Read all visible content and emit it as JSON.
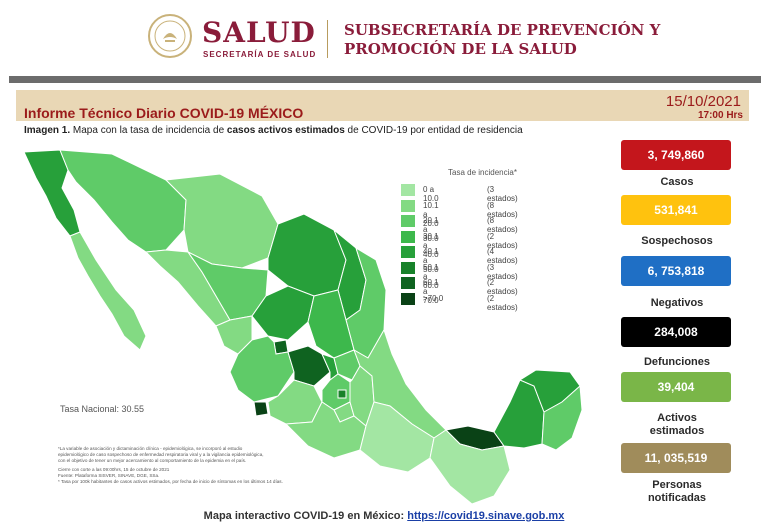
{
  "header": {
    "seal_label": "ESTADOS UNIDOS MEXICANOS",
    "brand": "SALUD",
    "brand_sub": "SECRETARÍA DE SALUD",
    "subsecretaria_line1": "SUBSECRETARÍA DE PREVENCIÓN Y",
    "subsecretaria_line2": "PROMOCIÓN DE LA SALUD"
  },
  "report": {
    "title": "Informe Técnico Diario COVID-19 MÉXICO",
    "date": "15/10/2021",
    "time": "17:00 Hrs"
  },
  "caption": {
    "prefix": "Imagen 1.",
    "text1": " Mapa con la tasa de incidencia de ",
    "bold": "casos activos estimados",
    "text2": " de COVID-19 por entidad de residencia"
  },
  "legend": {
    "title": "Tasa de incidencia*",
    "items": [
      {
        "range": "0   a  10.0",
        "count": "(3 estados)",
        "color": "#a3e6a3"
      },
      {
        "range": "10.1 a  20.0",
        "count": "(8 estados)",
        "color": "#83da83"
      },
      {
        "range": "20.1 a  30.0",
        "count": "(8 estados)",
        "color": "#5fcb68"
      },
      {
        "range": "30.1 a  40.0",
        "count": "(2 estados)",
        "color": "#3db84c"
      },
      {
        "range": "40.1 a  50.0",
        "count": "(4 estados)",
        "color": "#27a03a"
      },
      {
        "range": "50.1 a  60.0",
        "count": "(3 estados)",
        "color": "#18822a"
      },
      {
        "range": "60.1 a  70.0",
        "count": "(2 estados)",
        "color": "#0f6320"
      },
      {
        "range": ">70.0",
        "count": "(2 estados)",
        "color": "#0a4216"
      }
    ]
  },
  "tasa_nacional": "Tasa Nacional: 30.55",
  "notes": [
    "*La variable de asociación y dictaminación clínica - epidemiológica, se incorporó al estudio",
    "epidemiológico de caso sospechoso de enfermedad respiratoria viral y a la vigilancia epidemiológica,",
    "con el objetivo de tener un mejor acercamiento al comportamiento de la epidemia en el país.",
    "Cierre con corte a las 09:00hrs, 15 de octubre de 2021",
    "Fuente: Plataforma SISVER, SINAVE, DGE, SSa.",
    "* Tasa por 100k habitantes de casos activos estimados, por fecha de inicio de síntomas en los últimos 14 días."
  ],
  "stats": [
    {
      "value": "3, 749,860",
      "label": "Casos",
      "color": "#c4161c",
      "text_color": "#ffffff"
    },
    {
      "value": "531,841",
      "label": "Sospechosos",
      "color": "#ffc20e",
      "text_color": "#ffffff"
    },
    {
      "value": "6, 753,818",
      "label": "Negativos",
      "color": "#1f6fc5",
      "text_color": "#ffffff"
    },
    {
      "value": "284,008",
      "label": "Defunciones",
      "color": "#000000",
      "text_color": "#ffffff"
    },
    {
      "value": "39,404",
      "label": "Activos estimados",
      "color": "#7ab648",
      "text_color": "#ffffff"
    },
    {
      "value": "11, 035,519",
      "label": "Personas notificadas",
      "color": "#a08c5b",
      "text_color": "#ffffff"
    }
  ],
  "footer": {
    "text": "Mapa interactivo COVID-19 en México: ",
    "link": "https://covid19.sinave.gob.mx"
  }
}
